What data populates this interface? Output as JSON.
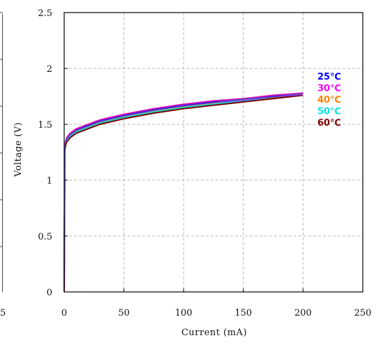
{
  "chart_data": {
    "type": "line",
    "title": "",
    "xlabel": "Current (mA)",
    "ylabel": "Voltage (V)",
    "xlim": [
      0,
      250
    ],
    "ylim": [
      0,
      2.5
    ],
    "x_ticks": [
      "0",
      "50",
      "100",
      "150",
      "200",
      "250"
    ],
    "y_ticks": [
      "0",
      "0.5",
      "1",
      "1.5",
      "2",
      "2.5"
    ],
    "left_edge_tick_fragment": "5",
    "grid": true,
    "legend_position": "right",
    "series": [
      {
        "name": "25℃",
        "color": "#0000ff",
        "x": [
          0,
          0.5,
          1,
          2,
          5,
          10,
          20,
          30,
          50,
          75,
          100,
          125,
          150,
          175,
          200
        ],
        "y": [
          0,
          1.29,
          1.33,
          1.37,
          1.41,
          1.45,
          1.49,
          1.53,
          1.58,
          1.63,
          1.67,
          1.7,
          1.72,
          1.75,
          1.77
        ]
      },
      {
        "name": "30℃",
        "color": "#ff00ff",
        "x": [
          0,
          0.5,
          1,
          2,
          5,
          10,
          20,
          30,
          50,
          75,
          100,
          125,
          150,
          175,
          200
        ],
        "y": [
          0,
          1.3,
          1.34,
          1.38,
          1.42,
          1.46,
          1.5,
          1.54,
          1.59,
          1.64,
          1.68,
          1.71,
          1.73,
          1.76,
          1.78
        ]
      },
      {
        "name": "40℃",
        "color": "#ff7f00",
        "x": [
          0,
          0.5,
          1,
          2,
          5,
          10,
          20,
          30,
          50,
          75,
          100,
          125,
          150,
          175,
          200
        ],
        "y": [
          0,
          1.28,
          1.32,
          1.36,
          1.4,
          1.44,
          1.48,
          1.52,
          1.57,
          1.62,
          1.66,
          1.69,
          1.72,
          1.74,
          1.77
        ]
      },
      {
        "name": "50℃",
        "color": "#00e5e5",
        "x": [
          0,
          0.5,
          1,
          2,
          5,
          10,
          20,
          30,
          50,
          75,
          100,
          125,
          150,
          175,
          200
        ],
        "y": [
          0,
          1.27,
          1.31,
          1.35,
          1.39,
          1.43,
          1.47,
          1.51,
          1.56,
          1.61,
          1.65,
          1.68,
          1.71,
          1.73,
          1.76
        ]
      },
      {
        "name": "60℃",
        "color": "#7f0000",
        "x": [
          0,
          0.5,
          1,
          2,
          5,
          10,
          20,
          30,
          50,
          75,
          100,
          125,
          150,
          175,
          200
        ],
        "y": [
          0,
          1.26,
          1.3,
          1.34,
          1.38,
          1.42,
          1.46,
          1.5,
          1.55,
          1.6,
          1.64,
          1.67,
          1.7,
          1.73,
          1.76
        ]
      }
    ],
    "curve_overlay_colors": [
      "#9b30ff",
      "#c41e8f",
      "#3b4bd6"
    ]
  }
}
